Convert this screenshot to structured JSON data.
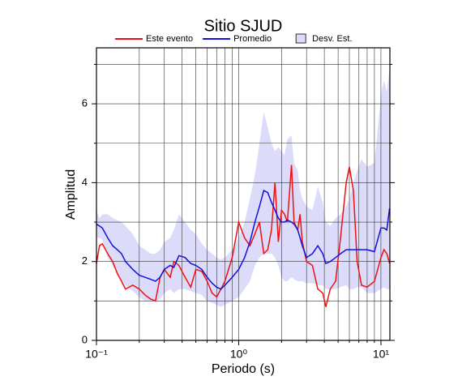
{
  "chart_data": {
    "type": "line",
    "title": "Sitio SJUD",
    "xlabel": "Periodo (s)",
    "ylabel": "Amplitud",
    "x": [
      0.1,
      0.105,
      0.11,
      0.12,
      0.13,
      0.14,
      0.15,
      0.16,
      0.18,
      0.2,
      0.22,
      0.24,
      0.26,
      0.28,
      0.3,
      0.33,
      0.35,
      0.38,
      0.42,
      0.46,
      0.5,
      0.55,
      0.6,
      0.65,
      0.7,
      0.75,
      0.8,
      0.9,
      1.0,
      1.1,
      1.2,
      1.3,
      1.4,
      1.5,
      1.6,
      1.7,
      1.8,
      1.9,
      2.0,
      2.1,
      2.2,
      2.35,
      2.45,
      2.6,
      2.7,
      2.8,
      3.0,
      3.3,
      3.6,
      3.9,
      4.1,
      4.4,
      4.8,
      5.2,
      5.7,
      6.0,
      6.4,
      6.8,
      7.3,
      8.0,
      9.0,
      10,
      10.5,
      11,
      11.5
    ],
    "series": [
      {
        "name": "Este evento",
        "color": "#ee1111",
        "values": [
          1.95,
          2.4,
          2.45,
          2.2,
          2.0,
          1.7,
          1.5,
          1.3,
          1.4,
          1.3,
          1.15,
          1.05,
          1.0,
          1.6,
          1.8,
          1.6,
          2.0,
          1.9,
          1.6,
          1.35,
          1.8,
          1.75,
          1.5,
          1.2,
          1.1,
          1.3,
          1.5,
          2.1,
          3.0,
          2.6,
          2.4,
          2.7,
          3.0,
          2.2,
          2.3,
          2.8,
          4.0,
          2.5,
          3.3,
          3.2,
          3.0,
          4.45,
          3.0,
          2.8,
          3.2,
          2.5,
          2.0,
          1.9,
          1.3,
          1.2,
          0.85,
          1.3,
          1.5,
          2.6,
          4.0,
          4.4,
          3.8,
          2.0,
          1.4,
          1.35,
          1.5,
          2.1,
          2.3,
          2.2,
          1.95
        ]
      },
      {
        "name": "Promedio",
        "color": "#1111dd",
        "values": [
          2.95,
          2.9,
          2.85,
          2.6,
          2.4,
          2.3,
          2.2,
          2.0,
          1.8,
          1.65,
          1.6,
          1.55,
          1.5,
          1.6,
          1.8,
          1.9,
          1.85,
          2.15,
          2.1,
          1.95,
          1.9,
          1.8,
          1.6,
          1.45,
          1.35,
          1.3,
          1.4,
          1.6,
          1.8,
          2.1,
          2.5,
          3.0,
          3.4,
          3.8,
          3.75,
          3.5,
          3.3,
          3.1,
          3.0,
          3.0,
          3.05,
          3.0,
          2.95,
          2.8,
          2.6,
          2.4,
          2.1,
          2.2,
          2.4,
          2.2,
          1.95,
          2.0,
          2.1,
          2.2,
          2.3,
          2.3,
          2.3,
          2.3,
          2.3,
          2.3,
          2.25,
          2.85,
          2.85,
          2.8,
          3.35
        ]
      },
      {
        "name": "Desv. Est.",
        "color": "#dcdcfa",
        "upper": [
          3.3,
          3.1,
          3.2,
          3.2,
          3.1,
          3.05,
          3.0,
          2.9,
          2.7,
          2.4,
          2.3,
          2.2,
          2.2,
          2.3,
          2.5,
          2.6,
          2.8,
          3.2,
          3.0,
          2.8,
          2.7,
          2.45,
          2.3,
          2.2,
          2.1,
          2.05,
          2.1,
          2.3,
          2.6,
          3.0,
          3.6,
          4.2,
          5.0,
          5.8,
          5.4,
          5.0,
          4.8,
          4.9,
          4.8,
          4.7,
          5.1,
          5.2,
          4.5,
          4.3,
          3.8,
          3.6,
          3.4,
          3.3,
          3.9,
          3.5,
          3.0,
          2.9,
          3.1,
          3.2,
          3.4,
          3.6,
          4.0,
          4.3,
          4.6,
          4.4,
          4.5,
          6.2,
          6.6,
          6.3,
          6.9
        ],
        "lower": [
          2.6,
          2.6,
          2.55,
          2.1,
          1.9,
          1.7,
          1.5,
          1.4,
          1.25,
          1.1,
          1.0,
          1.0,
          1.0,
          1.05,
          1.2,
          1.3,
          1.2,
          1.3,
          1.3,
          1.25,
          1.2,
          1.15,
          1.0,
          0.95,
          0.9,
          0.85,
          0.9,
          1.0,
          1.1,
          1.3,
          1.5,
          1.9,
          2.1,
          2.2,
          2.2,
          2.2,
          2.1,
          1.9,
          1.6,
          1.5,
          1.5,
          1.6,
          1.55,
          1.5,
          1.5,
          1.5,
          1.45,
          1.45,
          1.4,
          1.4,
          1.3,
          1.3,
          1.3,
          1.35,
          1.4,
          1.3,
          1.3,
          1.35,
          1.35,
          1.2,
          1.2,
          1.3,
          1.35,
          1.3,
          1.3
        ]
      }
    ],
    "xlog": true,
    "xlim": [
      0.1,
      11.56
    ],
    "xticks": [
      {
        "value": 0.1,
        "label": "10⁻¹"
      },
      {
        "value": 1,
        "label": "10⁰"
      },
      {
        "value": 10,
        "label": "10¹"
      }
    ],
    "xminor": [
      0.2,
      0.3,
      0.4,
      0.5,
      0.6,
      0.7,
      0.8,
      0.9,
      2,
      3,
      4,
      5,
      6,
      7,
      8,
      9
    ],
    "ylim": [
      0,
      7.42
    ],
    "yticks": [
      0,
      2,
      4,
      6
    ],
    "yminor": [
      1,
      3,
      5,
      7
    ],
    "grid": true
  }
}
